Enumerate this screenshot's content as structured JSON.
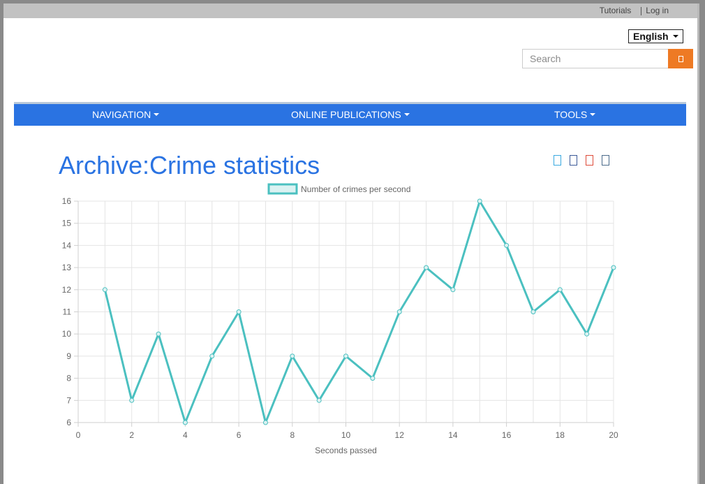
{
  "topbar": {
    "tutorials": "Tutorials",
    "login": "Log in"
  },
  "language": {
    "selected": "English"
  },
  "search": {
    "placeholder": "Search"
  },
  "nav": {
    "items": [
      "NAVIGATION",
      "ONLINE PUBLICATIONS",
      "TOOLS"
    ]
  },
  "page": {
    "title": "Archive:Crime statistics"
  },
  "share_icons": [
    {
      "name": "twitter-icon",
      "color": "#3aa9e0"
    },
    {
      "name": "facebook-icon",
      "color": "#3b5998"
    },
    {
      "name": "google-plus-icon",
      "color": "#dd4b39"
    },
    {
      "name": "linkedin-icon",
      "color": "#4a6a8a"
    }
  ],
  "colors": {
    "accent": "#2a73e2",
    "search_button": "#ee7a24",
    "series": "#4bc0c0"
  },
  "chart_data": {
    "type": "line",
    "xlabel": "Seconds passed",
    "ylabel": "",
    "xlim": [
      0,
      20
    ],
    "ylim": [
      6,
      16
    ],
    "x_ticks": [
      "0",
      "2",
      "4",
      "6",
      "8",
      "10",
      "12",
      "14",
      "16",
      "18",
      "20"
    ],
    "y_ticks": [
      "6",
      "7",
      "8",
      "9",
      "10",
      "11",
      "12",
      "13",
      "14",
      "15",
      "16"
    ],
    "grid": true,
    "legend": "top-center",
    "series": [
      {
        "name": "Number of crimes per second",
        "x": [
          1,
          2,
          3,
          4,
          5,
          6,
          7,
          8,
          9,
          10,
          11,
          12,
          13,
          14,
          15,
          16,
          17,
          18,
          19,
          20
        ],
        "y": [
          12,
          7,
          10,
          6,
          9,
          11,
          6,
          9,
          7,
          9,
          8,
          11,
          13,
          12,
          16,
          14,
          11,
          12,
          10,
          13
        ]
      }
    ]
  }
}
